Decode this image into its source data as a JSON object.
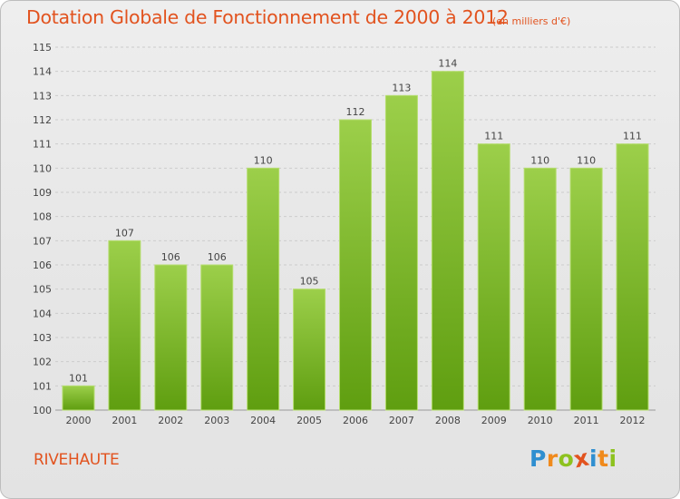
{
  "title": "Dotation Globale de Fonctionnement de 2000 à 2012",
  "subtitle": "(en milliers d'€)",
  "commune": "RIVEHAUTE",
  "logo": {
    "text": "Proxiti",
    "letters": [
      {
        "char": "P",
        "color": "#2f8fd0"
      },
      {
        "char": "r",
        "color": "#f08a1c"
      },
      {
        "char": "o",
        "color": "#8dc21f"
      },
      {
        "char": "x",
        "color": "#e2531f"
      },
      {
        "char": "i",
        "color": "#2f8fd0"
      },
      {
        "char": "t",
        "color": "#f08a1c"
      },
      {
        "char": "i",
        "color": "#8dc21f"
      }
    ]
  },
  "colors": {
    "title": "#e2531f",
    "bar_top": "#9ccf4a",
    "bar_bottom": "#5f9e10",
    "grid": "#cccccc",
    "axis_text": "#444444"
  },
  "chart_data": {
    "type": "bar",
    "title": "Dotation Globale de Fonctionnement de 2000 à 2012",
    "subtitle": "(en milliers d'€)",
    "categories": [
      "2000",
      "2001",
      "2002",
      "2003",
      "2004",
      "2005",
      "2006",
      "2007",
      "2008",
      "2009",
      "2010",
      "2011",
      "2012"
    ],
    "values": [
      101,
      107,
      106,
      106,
      110,
      105,
      112,
      113,
      114,
      111,
      110,
      110,
      111
    ],
    "ylim": [
      100,
      115
    ],
    "yticks": [
      100,
      101,
      102,
      103,
      104,
      105,
      106,
      107,
      108,
      109,
      110,
      111,
      112,
      113,
      114,
      115
    ],
    "data_labels": true,
    "grid": true
  }
}
